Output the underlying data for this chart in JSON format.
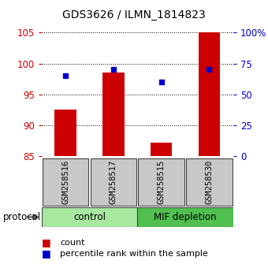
{
  "title": "GDS3626 / ILMN_1814823",
  "samples": [
    "GSM258516",
    "GSM258517",
    "GSM258515",
    "GSM258530"
  ],
  "red_values": [
    92.5,
    98.5,
    87.2,
    105.0
  ],
  "blue_pct": [
    65.0,
    70.0,
    60.0,
    70.0
  ],
  "left_ylim": [
    85,
    106
  ],
  "left_yticks": [
    85,
    90,
    95,
    100,
    105
  ],
  "right_yticks_pct": [
    0,
    25,
    50,
    75,
    100
  ],
  "bar_color": "#CC0000",
  "dot_color": "#0000CC",
  "bar_width": 0.45,
  "left_tick_color": "#CC0000",
  "right_tick_color": "#0000CC",
  "sample_box_color": "#C8C8C8",
  "ctrl_color": "#A8E8A0",
  "mif_color": "#50C050",
  "legend_count_label": "count",
  "legend_pct_label": "percentile rank within the sample",
  "protocol_label": "protocol"
}
